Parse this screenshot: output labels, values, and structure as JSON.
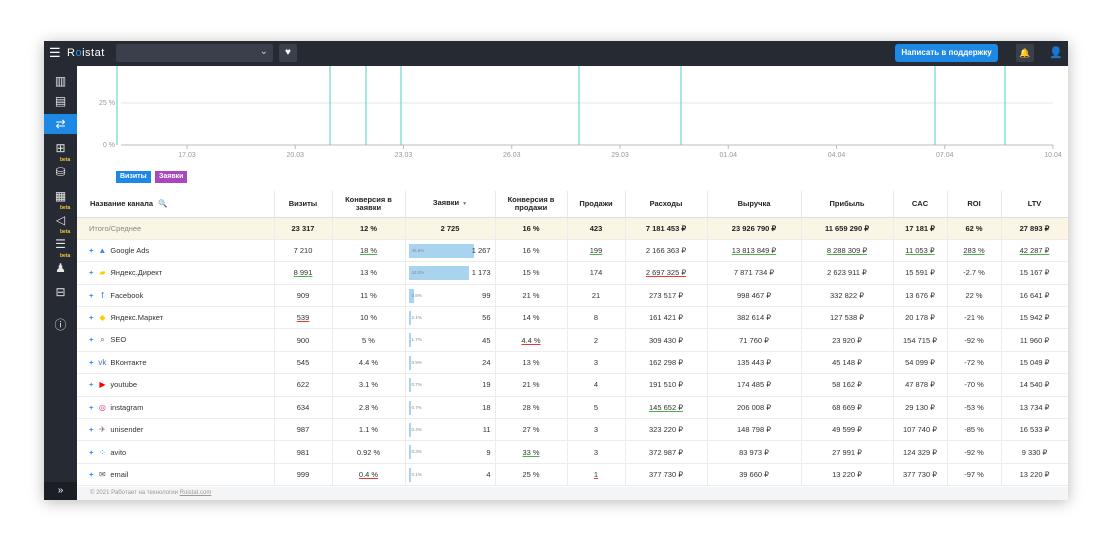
{
  "app": {
    "logo_prefix": "R",
    "logo_o": "o",
    "logo_suffix": "istat"
  },
  "topbar": {
    "support_label": "Написать в поддержку"
  },
  "icons": {
    "menu": "☰",
    "chevron": "⌄",
    "heart": "♥",
    "bell": "🔔",
    "user": "👤",
    "side_expand": "»",
    "search": "🔍",
    "sort_desc": "▼",
    "bar_chart": "▥"
  },
  "sidebar": {
    "beta_label": "beta",
    "items": [
      {
        "name": "dashboard-icon",
        "glyph": "▥"
      },
      {
        "name": "clipboard-icon",
        "glyph": "▤"
      },
      {
        "name": "channels-icon",
        "glyph": "⇄",
        "active": true
      },
      {
        "name": "sitemap-icon",
        "glyph": "⊞"
      },
      {
        "name": "cart-icon",
        "glyph": "⛁",
        "beta": true
      },
      {
        "name": "calendar-icon",
        "glyph": "▦"
      },
      {
        "name": "megaphone-icon",
        "glyph": "◁",
        "beta": true
      },
      {
        "name": "coins-icon",
        "glyph": "☰",
        "beta": true
      },
      {
        "name": "users-icon",
        "glyph": "♟",
        "beta": true
      },
      {
        "name": "grid-icon",
        "glyph": "⊟"
      },
      {
        "name": "info-icon",
        "glyph": "ⓘ"
      }
    ]
  },
  "chart": {
    "y_ticks": [
      "25 %",
      "0 %"
    ],
    "x_ticks": [
      "17.03",
      "20.03",
      "23.03",
      "26.03",
      "29.03",
      "01.04",
      "04.04",
      "07.04",
      "10.04"
    ],
    "legend": [
      {
        "label": "Визиты",
        "color": "#1e88e5"
      },
      {
        "label": "Заявки",
        "color": "#ab47bc"
      }
    ],
    "colors": {
      "line": "#4dd0c0",
      "grid": "#e6e6e6",
      "axis": "#bbbbbb"
    }
  },
  "chart_data": {
    "type": "line",
    "x": [
      "17.03",
      "20.03",
      "23.03",
      "26.03",
      "29.03",
      "01.04",
      "04.04",
      "07.04",
      "10.04"
    ],
    "series": [
      {
        "name": "Заявки",
        "values": [
          0,
          0,
          0,
          0,
          0,
          0,
          0,
          0,
          0
        ]
      }
    ],
    "ylim": [
      0,
      25
    ],
    "grid": true
  },
  "table": {
    "headers": [
      "Название канала",
      "Визиты",
      "Конверсия в заявки",
      "Заявки",
      "Конверсия в продажи",
      "Продажи",
      "Расходы",
      "Выручка",
      "Прибыль",
      "CAC",
      "ROI",
      "LTV"
    ],
    "total": {
      "name": "Итого/Среднее",
      "cells": [
        "23 317",
        "12 %",
        "2 725",
        "16 %",
        "423",
        "7 181 453 ₽",
        "23 926 790 ₽",
        "11 659 290 ₽",
        "17 181 ₽",
        "62 %",
        "27 893 ₽"
      ]
    },
    "rows": [
      {
        "icon": "google-ads-icon",
        "glyph": "▲",
        "color": "#4285f4",
        "name": "Google Ads",
        "cells": [
          "7 210",
          "18 %",
          "1 267",
          "16 %",
          "199",
          "2 166 363 ₽",
          "13 813 849 ₽",
          "8 288 309 ₽",
          "11 053 ₽",
          "283 %",
          "42 287 ₽"
        ],
        "bar_pct": "46.5%",
        "bar_frac": 0.465,
        "u": {
          "1": "green",
          "4": "green",
          "6": "green",
          "7": "green",
          "8": "green",
          "9": "green",
          "10": "green"
        }
      },
      {
        "icon": "yandex-direct-icon",
        "glyph": "▰",
        "color": "#ffcc00",
        "name": "Яндекс.Директ",
        "cells": [
          "8 991",
          "13 %",
          "1 173",
          "15 %",
          "174",
          "2 697 325 ₽",
          "7 871 734 ₽",
          "2 623 911 ₽",
          "15 591 ₽",
          "-2.7 %",
          "15 167 ₽"
        ],
        "bar_pct": "43.0%",
        "bar_frac": 0.43,
        "u": {
          "0": "green",
          "5": "red"
        }
      },
      {
        "icon": "facebook-icon",
        "glyph": "f",
        "color": "#1877f2",
        "name": "Facebook",
        "cells": [
          "909",
          "11 %",
          "99",
          "21 %",
          "21",
          "273 517 ₽",
          "998 467 ₽",
          "332 822 ₽",
          "13 676 ₽",
          "22 %",
          "16 641 ₽"
        ],
        "bar_pct": "3.6%",
        "bar_frac": 0.036
      },
      {
        "icon": "yandex-market-icon",
        "glyph": "◆",
        "color": "#ffcc00",
        "name": "Яндекс.Маркет",
        "cells": [
          "539",
          "10 %",
          "56",
          "14 %",
          "8",
          "161 421 ₽",
          "382 614 ₽",
          "127 538 ₽",
          "20 178 ₽",
          "-21 %",
          "15 942 ₽"
        ],
        "bar_pct": "2.1%",
        "bar_frac": 0.021,
        "u": {
          "0": "red"
        }
      },
      {
        "icon": "search-icon",
        "glyph": "⌕",
        "color": "#555555",
        "name": "SEO",
        "cells": [
          "900",
          "5 %",
          "45",
          "4.4 %",
          "2",
          "309 430 ₽",
          "71 760 ₽",
          "23 920 ₽",
          "154 715 ₽",
          "-92 %",
          "11 960 ₽"
        ],
        "bar_pct": "1.7%",
        "bar_frac": 0.017,
        "u": {
          "3": "red"
        }
      },
      {
        "icon": "vk-icon",
        "glyph": "vk",
        "color": "#4a76a8",
        "name": "ВКонтакте",
        "cells": [
          "545",
          "4.4 %",
          "24",
          "13 %",
          "3",
          "162 298 ₽",
          "135 443 ₽",
          "45 148 ₽",
          "54 099 ₽",
          "-72 %",
          "15 049 ₽"
        ],
        "bar_pct": "0.9%",
        "bar_frac": 0.009
      },
      {
        "icon": "youtube-icon",
        "glyph": "▶",
        "color": "#ff0000",
        "name": "youtube",
        "cells": [
          "622",
          "3.1 %",
          "19",
          "21 %",
          "4",
          "191 510 ₽",
          "174 485 ₽",
          "58 162 ₽",
          "47 878 ₽",
          "-70 %",
          "14 540 ₽"
        ],
        "bar_pct": "0.7%",
        "bar_frac": 0.007
      },
      {
        "icon": "instagram-icon",
        "glyph": "◎",
        "color": "#c13584",
        "name": "instagram",
        "cells": [
          "634",
          "2.8 %",
          "18",
          "28 %",
          "5",
          "145 652 ₽",
          "206 008 ₽",
          "68 669 ₽",
          "29 130 ₽",
          "-53 %",
          "13 734 ₽"
        ],
        "bar_pct": "0.7%",
        "bar_frac": 0.007,
        "u": {
          "5": "green"
        }
      },
      {
        "icon": "unisender-icon",
        "glyph": "✈",
        "color": "#8d6e63",
        "name": "unisender",
        "cells": [
          "987",
          "1.1 %",
          "11",
          "27 %",
          "3",
          "323 220 ₽",
          "148 798 ₽",
          "49 599 ₽",
          "107 740 ₽",
          "-85 %",
          "16 533 ₽"
        ],
        "bar_pct": "0.4%",
        "bar_frac": 0.004
      },
      {
        "icon": "avito-icon",
        "glyph": "⁘",
        "color": "#00aaff",
        "name": "avito",
        "cells": [
          "981",
          "0.92 %",
          "9",
          "33 %",
          "3",
          "372 987 ₽",
          "83 973 ₽",
          "27 991 ₽",
          "124 329 ₽",
          "-92 %",
          "9 330 ₽"
        ],
        "bar_pct": "0.3%",
        "bar_frac": 0.003,
        "u": {
          "3": "green"
        }
      },
      {
        "icon": "email-icon",
        "glyph": "✉",
        "color": "#555555",
        "name": "email",
        "cells": [
          "999",
          "0.4 %",
          "4",
          "25 %",
          "1",
          "377 730 ₽",
          "39 660 ₽",
          "13 220 ₽",
          "377 730 ₽",
          "-97 %",
          "13 220 ₽"
        ],
        "bar_pct": "0.1%",
        "bar_frac": 0.001,
        "u": {
          "1": "red",
          "2": "red",
          "4": "red"
        }
      }
    ]
  },
  "footer": {
    "text": "© 2021 Работает на технологии",
    "link": "Roistat.com"
  }
}
